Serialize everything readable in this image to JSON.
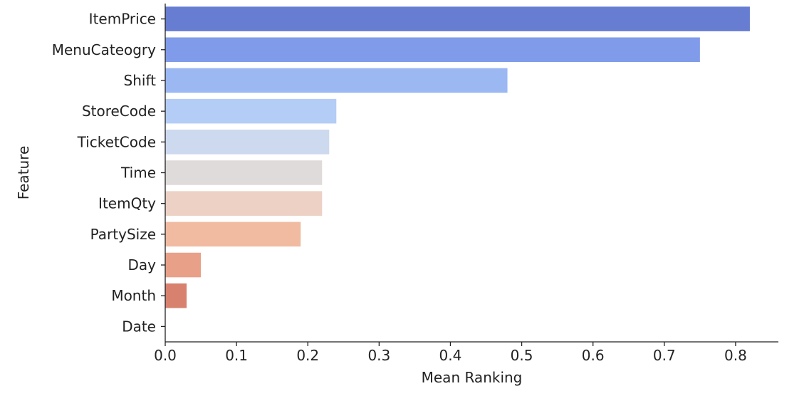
{
  "chart_data": {
    "type": "bar",
    "orientation": "horizontal",
    "categories": [
      "ItemPrice",
      "MenuCateogry",
      "Shift",
      "StoreCode",
      "TicketCode",
      "Time",
      "ItemQty",
      "PartySize",
      "Day",
      "Month",
      "Date"
    ],
    "values": [
      0.82,
      0.75,
      0.48,
      0.24,
      0.23,
      0.22,
      0.22,
      0.19,
      0.05,
      0.03,
      0.0
    ],
    "colors": [
      "#677dd2",
      "#809bea",
      "#9bb8f3",
      "#b4cdf6",
      "#cdd9ee",
      "#dfdbdb",
      "#ecd1c4",
      "#f1bba1",
      "#e8a089",
      "#d7816e",
      "#c75a4d"
    ],
    "xlabel": "Mean Ranking",
    "ylabel": "Feature",
    "xlim": [
      0,
      0.86
    ],
    "xticks": [
      "0.0",
      "0.1",
      "0.2",
      "0.3",
      "0.4",
      "0.5",
      "0.6",
      "0.7",
      "0.8"
    ],
    "grid": false,
    "legend": "none"
  }
}
